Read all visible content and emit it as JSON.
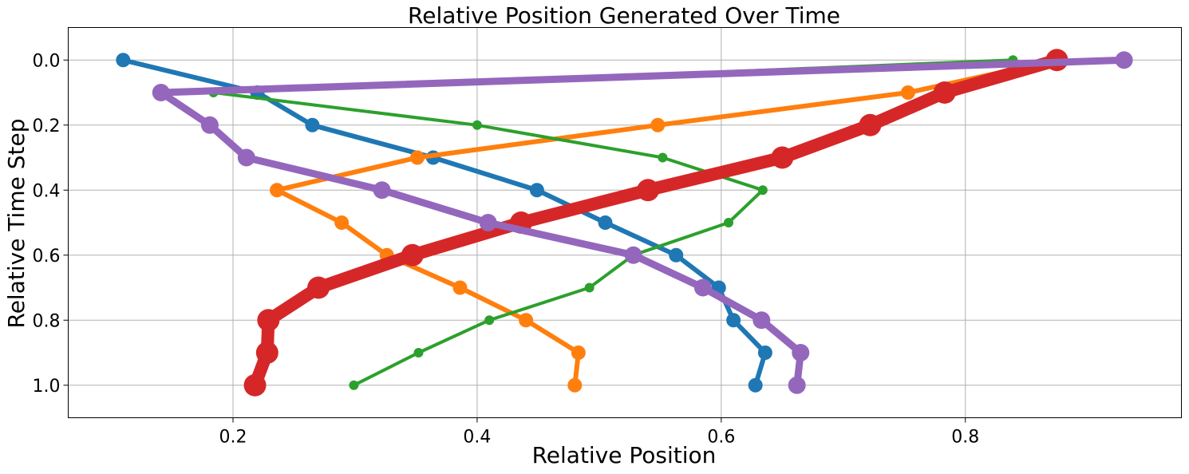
{
  "chart_data": {
    "type": "line",
    "title": "Relative Position Generated Over Time",
    "xlabel": "Relative Position",
    "ylabel": "Relative Time Step",
    "xlim": [
      0.065,
      0.977
    ],
    "ylim": [
      1.1,
      -0.1
    ],
    "y_inverted": true,
    "grid": true,
    "xticks": [
      0.2,
      0.4,
      0.6,
      0.8
    ],
    "xtick_labels": [
      "0.2",
      "0.4",
      "0.6",
      "0.8"
    ],
    "yticks": [
      0.0,
      0.2,
      0.4,
      0.6,
      0.8,
      1.0
    ],
    "ytick_labels": [
      "0.0",
      "0.2",
      "0.4",
      "0.6",
      "0.8",
      "1.0"
    ],
    "series": [
      {
        "color": "#1f77b4",
        "line_weight": 2,
        "x": [
          0.11,
          0.22,
          0.265,
          0.364,
          0.449,
          0.505,
          0.563,
          0.598,
          0.61,
          0.636,
          0.628
        ],
        "y": [
          0.0,
          0.1,
          0.2,
          0.3,
          0.4,
          0.5,
          0.6,
          0.7,
          0.8,
          0.9,
          1.0
        ]
      },
      {
        "color": "#ff7f0e",
        "line_weight": 2,
        "x": [
          0.875,
          0.753,
          0.548,
          0.351,
          0.236,
          0.289,
          0.326,
          0.386,
          0.44,
          0.483,
          0.48
        ],
        "y": [
          0.0,
          0.1,
          0.2,
          0.3,
          0.4,
          0.5,
          0.6,
          0.7,
          0.8,
          0.9,
          1.0
        ]
      },
      {
        "color": "#2ca02c",
        "line_weight": 1,
        "x": [
          0.839,
          0.184,
          0.4,
          0.552,
          0.634,
          0.606,
          0.528,
          0.492,
          0.41,
          0.352,
          0.299
        ],
        "y": [
          0.0,
          0.1,
          0.2,
          0.3,
          0.4,
          0.5,
          0.6,
          0.7,
          0.8,
          0.9,
          1.0
        ]
      },
      {
        "color": "#d62728",
        "line_weight": 5,
        "x": [
          0.875,
          0.783,
          0.722,
          0.65,
          0.54,
          0.436,
          0.347,
          0.27,
          0.229,
          0.228,
          0.218
        ],
        "y": [
          0.0,
          0.1,
          0.2,
          0.3,
          0.4,
          0.5,
          0.6,
          0.7,
          0.8,
          0.9,
          1.0
        ]
      },
      {
        "color": "#9467bd",
        "line_weight": 3,
        "x": [
          0.93,
          0.141,
          0.181,
          0.211,
          0.322,
          0.409,
          0.528,
          0.585,
          0.633,
          0.665,
          0.662
        ],
        "y": [
          0.0,
          0.1,
          0.2,
          0.3,
          0.4,
          0.5,
          0.6,
          0.7,
          0.8,
          0.9,
          1.0
        ]
      }
    ]
  }
}
